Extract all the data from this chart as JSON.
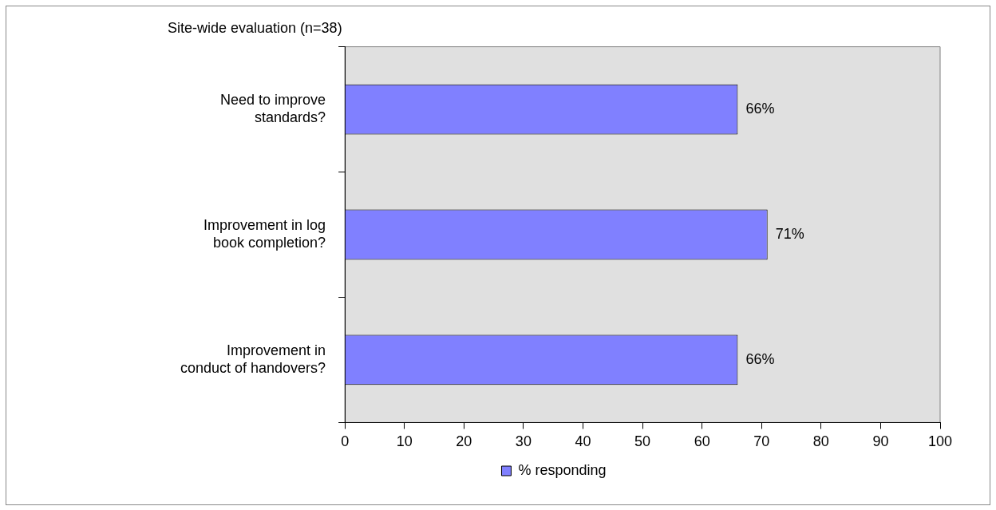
{
  "chart_data": {
    "type": "bar",
    "orientation": "horizontal",
    "title": "Site-wide evaluation (n=38)",
    "categories": [
      "Need to improve standards?",
      "Improvement in log book completion?",
      "Improvement in conduct of handovers?"
    ],
    "series": [
      {
        "name": "% responding",
        "color": "#8080ff",
        "values": [
          66,
          71,
          66
        ],
        "value_labels": [
          "66%",
          "71%",
          "66%"
        ]
      }
    ],
    "xlim": [
      0,
      100
    ],
    "xticks": [
      0,
      10,
      20,
      30,
      40,
      50,
      60,
      70,
      80,
      90,
      100
    ],
    "grid": false,
    "legend": "bottom"
  }
}
